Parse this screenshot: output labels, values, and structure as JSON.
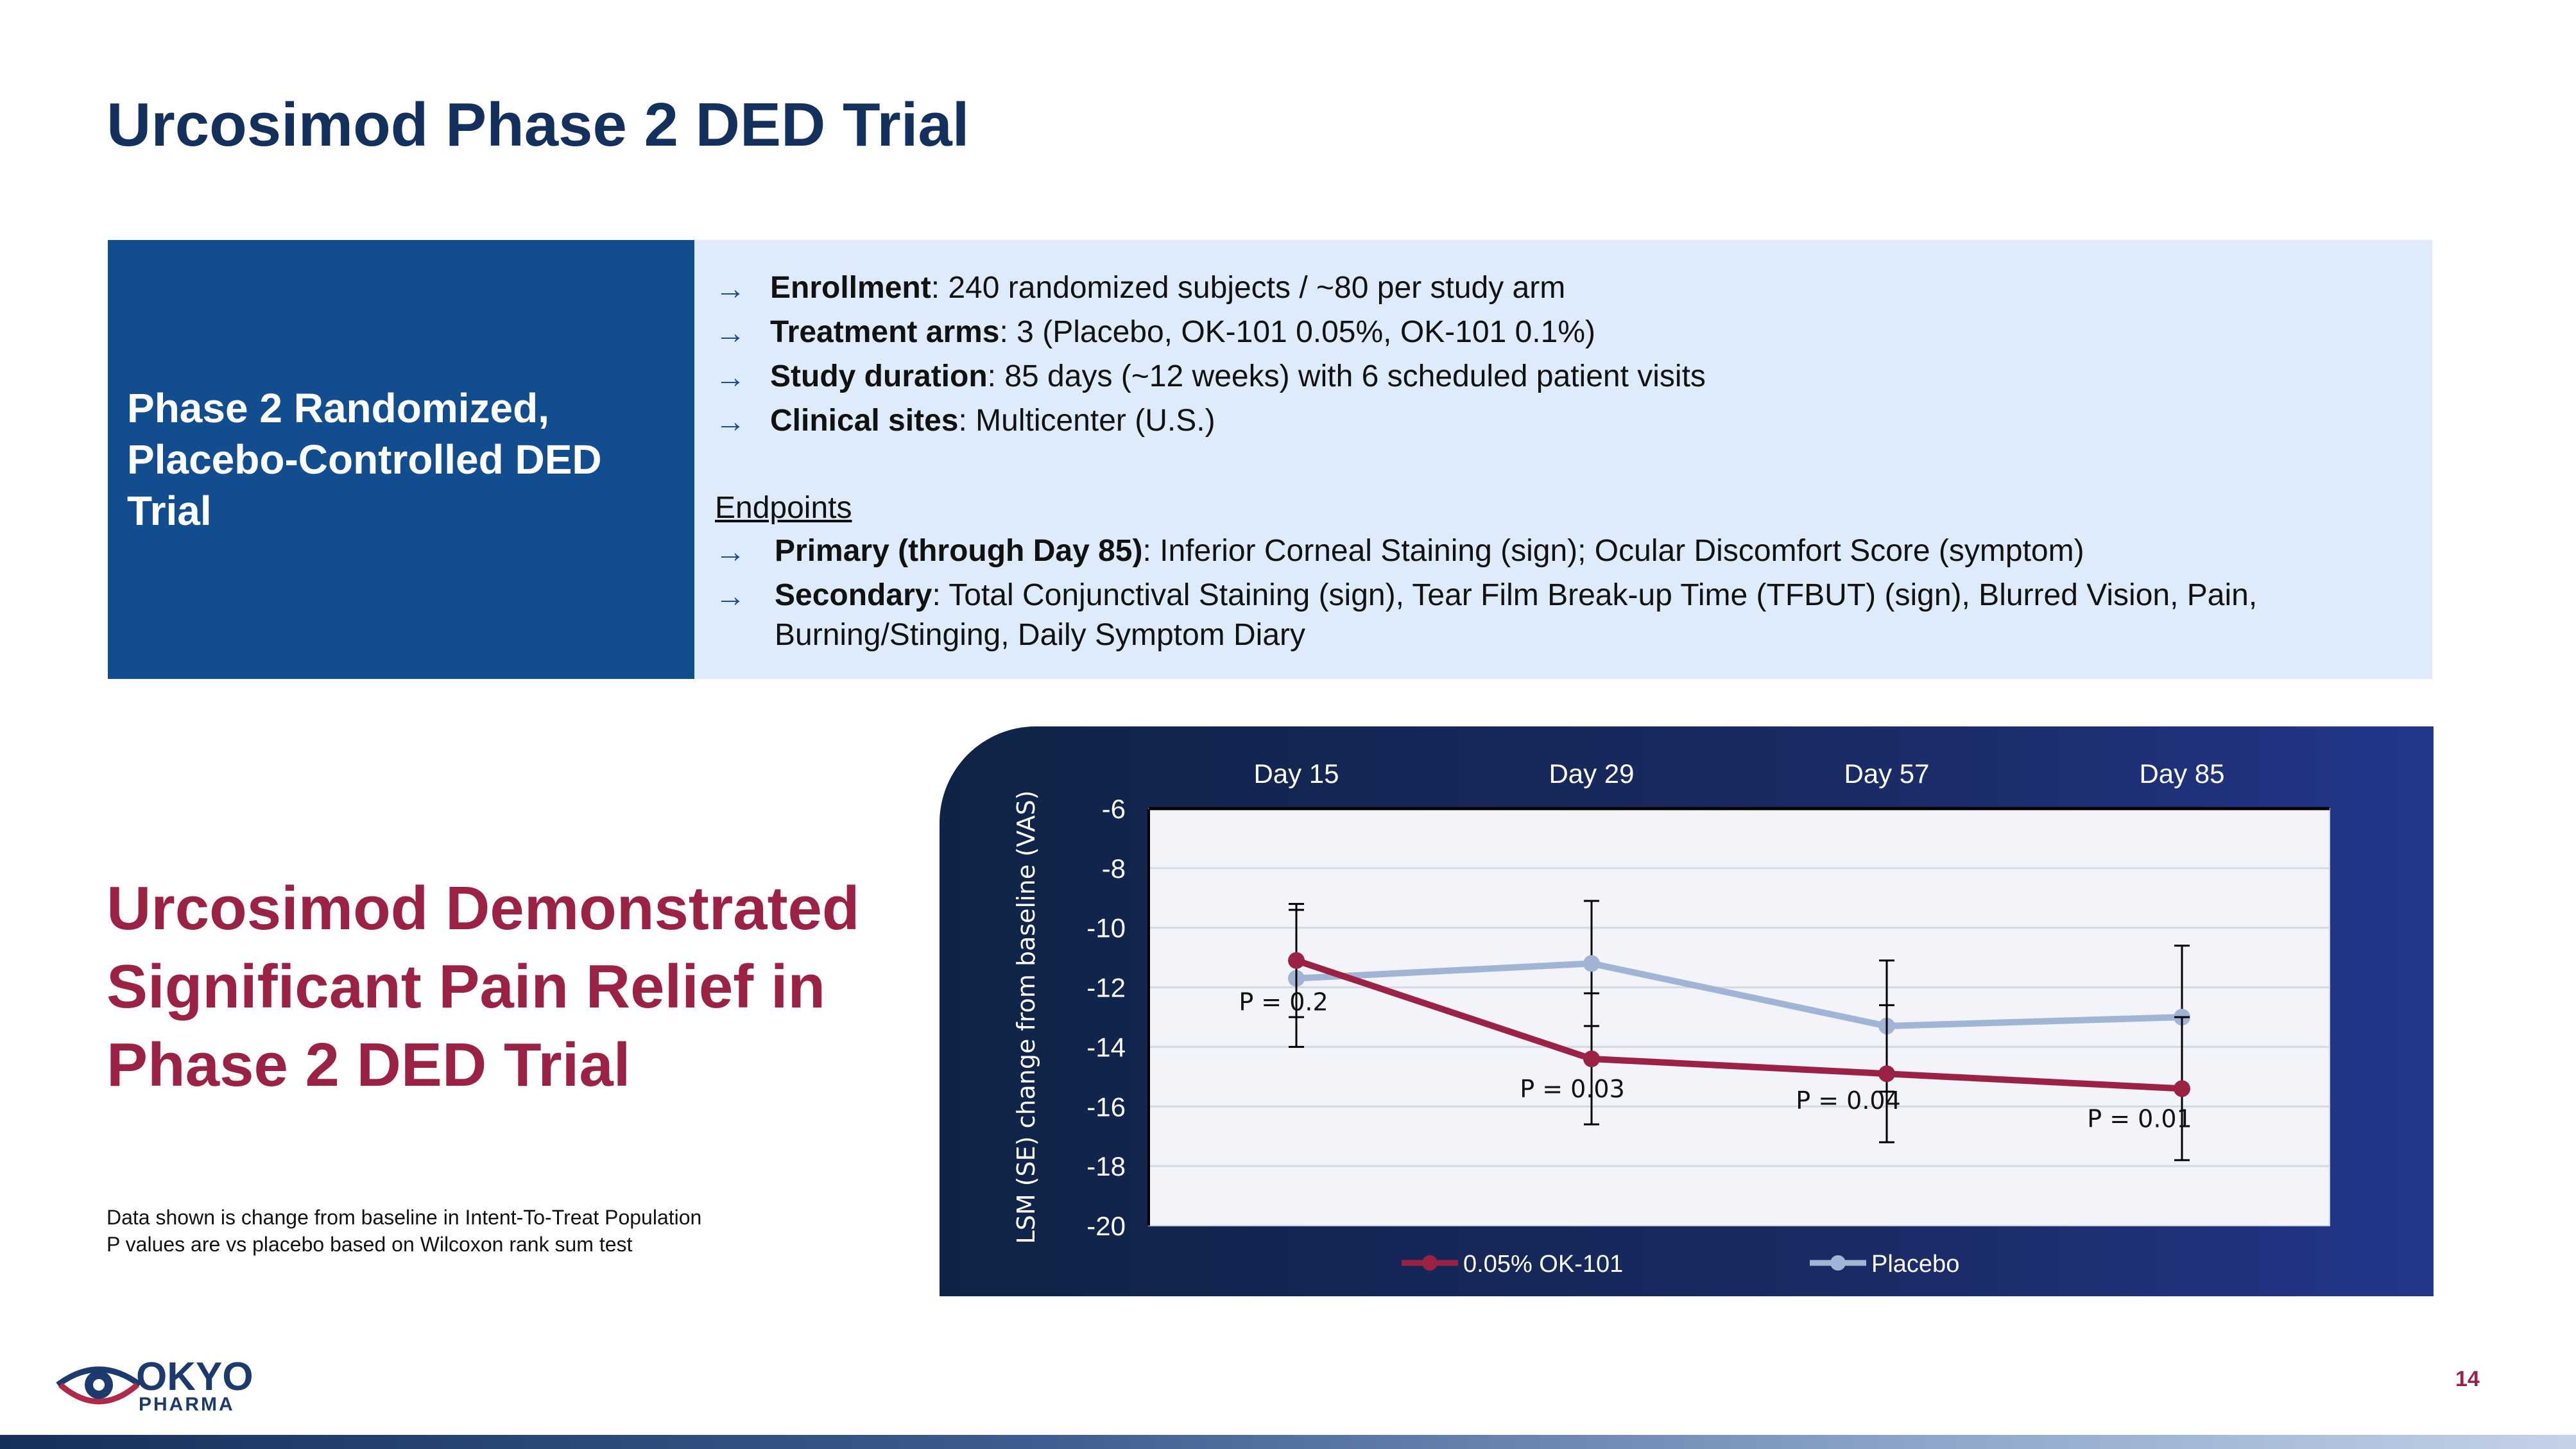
{
  "title": "Urcosimod Phase 2 DED Trial",
  "design_box": {
    "label_lines": [
      "Phase 2 Randomized,",
      "Placebo-Controlled DED",
      "Trial"
    ],
    "bullets": [
      {
        "bold": "Enrollment",
        "text": ": 240 randomized subjects / ~80 per study arm"
      },
      {
        "bold": "Treatment arms",
        "text": ": 3 (Placebo, OK-101 0.05%, OK-101 0.1%)"
      },
      {
        "bold": "Study duration",
        "text": ": 85 days (~12 weeks) with 6 scheduled patient visits"
      },
      {
        "bold": "Clinical sites",
        "text": ": Multicenter (U.S.)"
      }
    ],
    "endpoints_heading": "Endpoints",
    "endpoints": [
      {
        "bold": "Primary (through Day 85)",
        "text": ": Inferior Corneal Staining (sign); Ocular Discomfort Score (symptom)"
      },
      {
        "bold": "Secondary",
        "text": ": Total Conjunctival Staining (sign), Tear Film Break-up Time (TFBUT) (sign), Blurred Vision, Pain,",
        "continuation": "Burning/Stinging, Daily Symptom Diary"
      }
    ],
    "arrow_glyph": "→"
  },
  "headline_lines": [
    "Urcosimod Demonstrated",
    "Significant Pain Relief in",
    "Phase 2 DED Trial"
  ],
  "footnote_lines": [
    "Data shown is change from baseline in Intent-To-Treat Population",
    "P values are vs placebo based on Wilcoxon rank sum test"
  ],
  "chart_data": {
    "type": "line",
    "categories": [
      "Day 15",
      "Day 29",
      "Day 57",
      "Day 85"
    ],
    "ylabel": "LSM (SE) change from baseline (VAS)",
    "ylim": [
      -20,
      -6
    ],
    "yticks": [
      -6,
      -8,
      -10,
      -12,
      -14,
      -16,
      -18,
      -20
    ],
    "grid": true,
    "legend_position": "bottom",
    "series": [
      {
        "name": "0.05% OK-101",
        "values": [
          -11.1,
          -14.4,
          -14.9,
          -15.4
        ],
        "errors": [
          1.9,
          2.2,
          2.3,
          2.4
        ],
        "color": "#9b2245"
      },
      {
        "name": "Placebo",
        "values": [
          -11.7,
          -11.2,
          -13.3,
          -13.0
        ],
        "errors": [
          2.3,
          2.1,
          2.2,
          2.4
        ],
        "color": "#a2b4d6"
      }
    ],
    "annotations": [
      "P = 0.2",
      "P = 0.03",
      "P = 0.04",
      "P = 0.01"
    ]
  },
  "logo": {
    "line1": "OKYO",
    "line2": "PHARMA"
  },
  "page_number": "14"
}
